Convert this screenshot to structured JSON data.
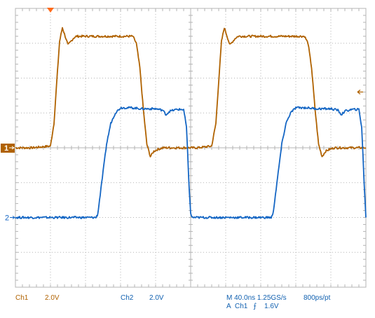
{
  "colors": {
    "ch1": "#b06200",
    "ch2": "#1466c4",
    "grid": "#b4b4b4",
    "trigger_marker": "#ff6a1a"
  },
  "channels": {
    "ch1": {
      "name": "Ch1",
      "scale": "2.0V",
      "marker": "1"
    },
    "ch2": {
      "name": "Ch2",
      "scale": "2.0V",
      "marker": "2"
    }
  },
  "timebase": {
    "horizontal": "M 40.0ns 1.25GS/s",
    "resolution": "800ps/pt"
  },
  "trigger": {
    "source_line_prefix": "A",
    "source": "Ch1",
    "slope_symbol": "⨍",
    "level": "1.6V"
  },
  "chart_data": {
    "type": "line",
    "title": "",
    "xlabel": "",
    "ylabel": "",
    "grid": true,
    "x_divisions": 10,
    "y_divisions": 8,
    "xlim": [
      0,
      10
    ],
    "ylim": [
      -4,
      4
    ],
    "series": [
      {
        "x": [
          0,
          0.48,
          1.0,
          1.1,
          1.18,
          1.26,
          1.34,
          1.42,
          1.5,
          1.58,
          1.66,
          1.74,
          1.82,
          2.0,
          2.4,
          2.8,
          3.2,
          3.35,
          3.45,
          3.55,
          3.65,
          3.75,
          3.85,
          3.95,
          4.05,
          4.2,
          4.4,
          4.7,
          5.2,
          5.6,
          5.72,
          5.8,
          5.88,
          5.96,
          6.04,
          6.12,
          6.2,
          6.28,
          6.36,
          6.5,
          6.9,
          7.3,
          7.7,
          8.25,
          8.35,
          8.45,
          8.55,
          8.65,
          8.75,
          8.85,
          8.95,
          9.1,
          9.3,
          9.6,
          10
        ],
        "y": [
          0.0,
          0.0,
          0.05,
          0.7,
          1.9,
          3.05,
          3.45,
          3.2,
          2.95,
          3.05,
          3.15,
          3.2,
          3.2,
          3.2,
          3.2,
          3.2,
          3.2,
          3.2,
          3.0,
          2.3,
          1.1,
          0.1,
          -0.25,
          -0.1,
          -0.05,
          0.0,
          0.0,
          0.0,
          0.0,
          0.05,
          0.7,
          1.9,
          3.05,
          3.45,
          3.2,
          2.95,
          3.05,
          3.15,
          3.2,
          3.2,
          3.2,
          3.2,
          3.2,
          3.2,
          3.0,
          2.3,
          1.1,
          0.1,
          -0.25,
          -0.1,
          -0.05,
          0.0,
          0.0,
          0.0,
          0.0
        ]
      },
      {
        "x": [
          0,
          0.5,
          1.0,
          1.5,
          2.0,
          2.3,
          2.35,
          2.4,
          2.5,
          2.6,
          2.72,
          2.85,
          3.0,
          3.3,
          3.6,
          4.0,
          4.2,
          4.3,
          4.4,
          4.6,
          4.8,
          4.88,
          4.95,
          5.0,
          5.05,
          5.3,
          5.8,
          6.3,
          6.6,
          7.0,
          7.3,
          7.35,
          7.4,
          7.5,
          7.6,
          7.72,
          7.85,
          8.0,
          8.3,
          8.6,
          9.0,
          9.2,
          9.3,
          9.4,
          9.6,
          9.8,
          9.88,
          9.95,
          10
        ],
        "y": [
          -2.0,
          -2.0,
          -2.0,
          -2.0,
          -2.0,
          -2.0,
          -1.9,
          -1.5,
          -0.7,
          0.1,
          0.7,
          1.0,
          1.15,
          1.15,
          1.12,
          1.12,
          1.08,
          0.95,
          1.05,
          1.1,
          1.1,
          0.6,
          -1.0,
          -1.9,
          -2.0,
          -2.0,
          -2.0,
          -2.0,
          -2.0,
          -2.0,
          -2.0,
          -1.9,
          -1.5,
          -0.7,
          0.1,
          0.7,
          1.0,
          1.15,
          1.15,
          1.12,
          1.12,
          1.08,
          0.95,
          1.05,
          1.1,
          1.1,
          0.6,
          -1.0,
          -2.0
        ]
      }
    ]
  }
}
